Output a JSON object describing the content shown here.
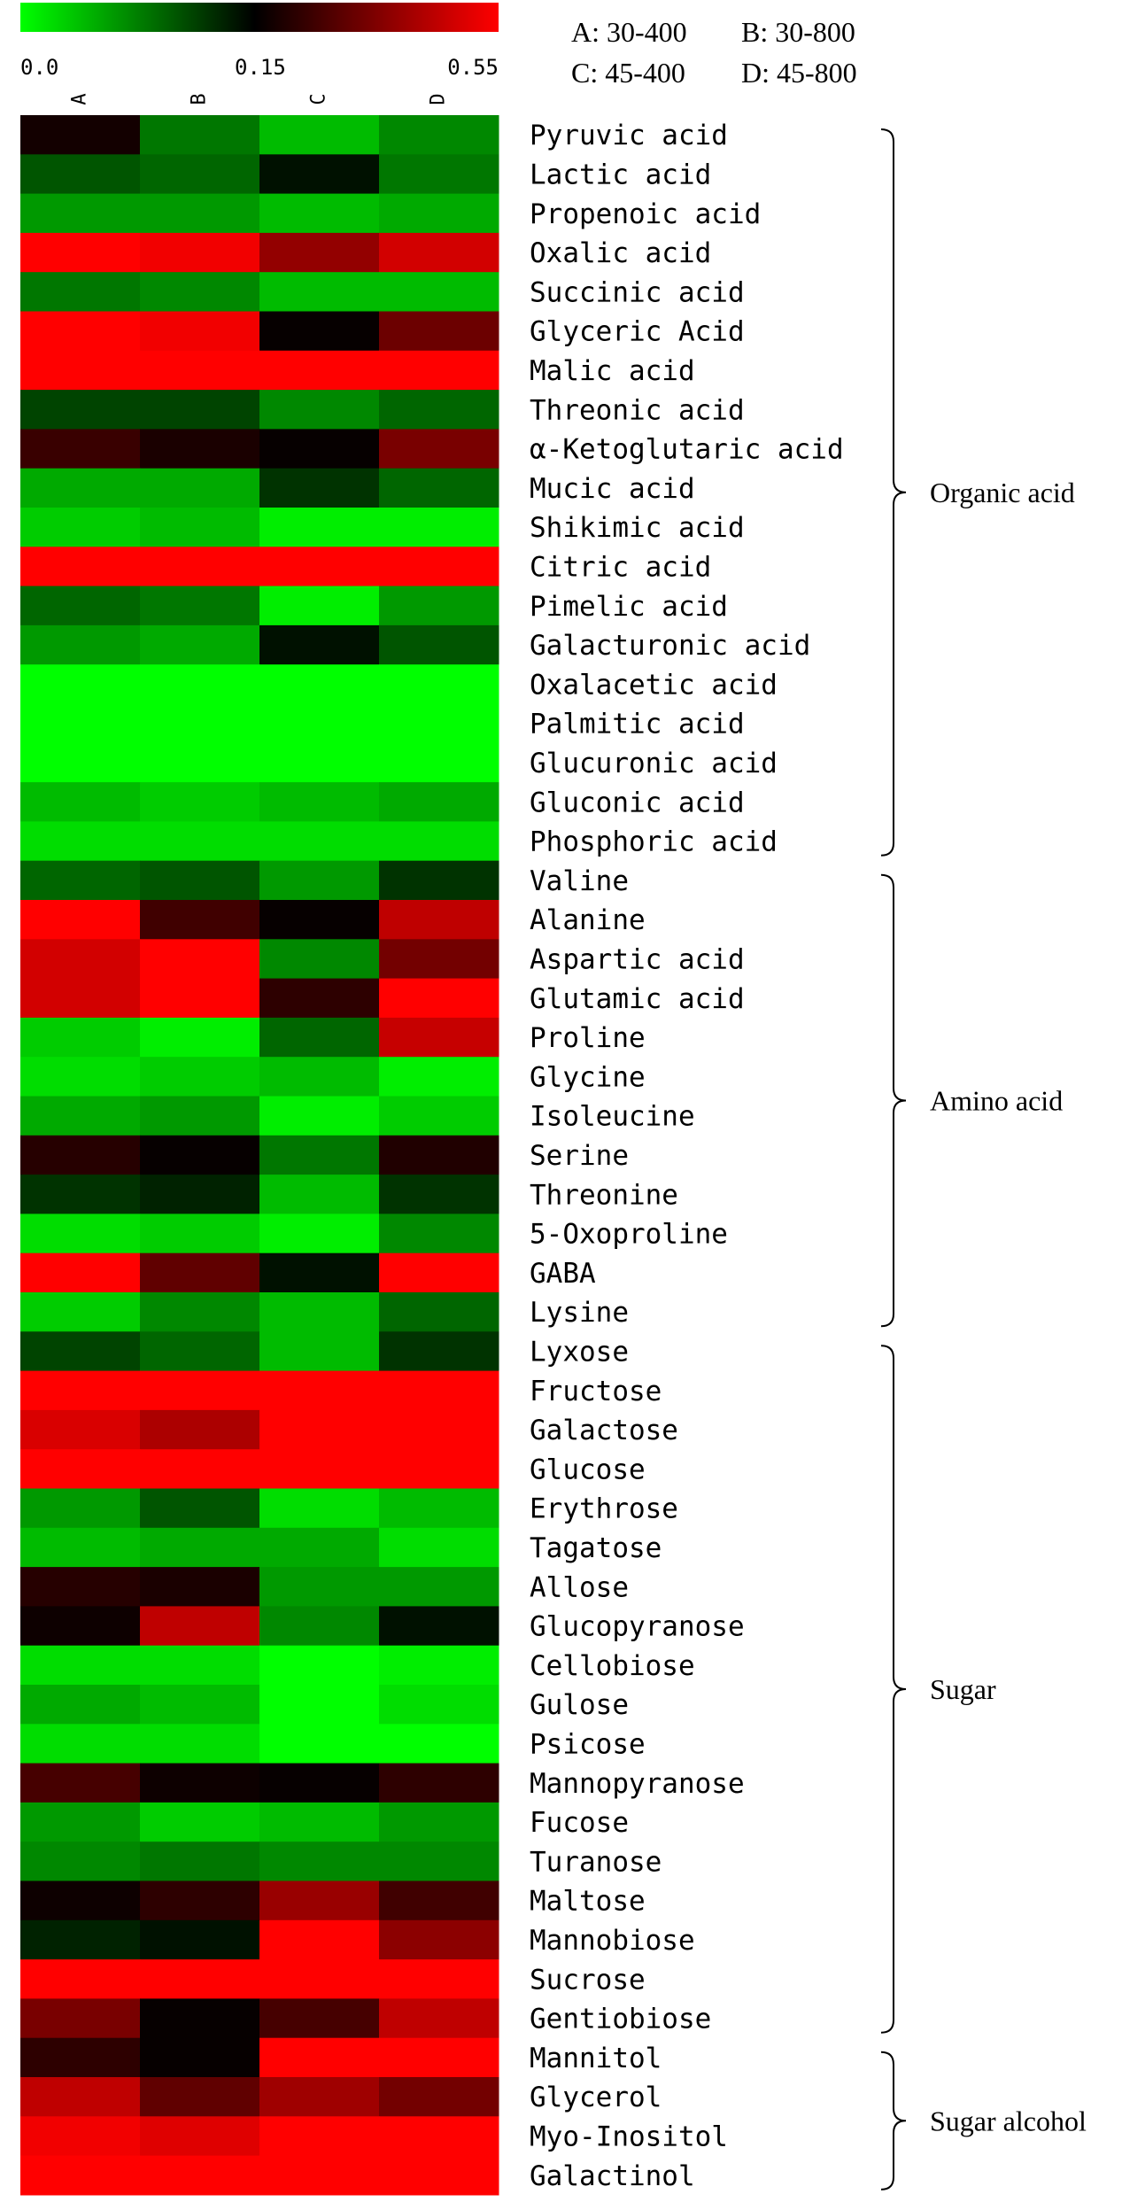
{
  "legend": {
    "ticks": [
      "0.0",
      "0.15",
      "0.55"
    ],
    "tick_values": [
      0.0,
      0.15,
      0.55
    ],
    "colors": [
      "#00ff00",
      "#000000",
      "#ff0000"
    ],
    "treatments": [
      {
        "key": "A",
        "text": "A: 30-400"
      },
      {
        "key": "B",
        "text": "B: 30-800"
      },
      {
        "key": "C",
        "text": "C: 45-400"
      },
      {
        "key": "D",
        "text": "D: 45-800"
      }
    ]
  },
  "chart_data": {
    "type": "heatmap",
    "columns": [
      "A",
      "B",
      "C",
      "D"
    ],
    "rows": [
      "Pyruvic acid",
      "Lactic acid",
      "Propenoic acid",
      "Oxalic acid",
      "Succinic acid",
      "Glyceric Acid",
      "Malic acid",
      "Threonic acid",
      "α-Ketoglutaric acid",
      "Mucic acid",
      "Shikimic acid",
      "Citric acid",
      "Pimelic acid",
      "Galacturonic acid",
      "Oxalacetic acid",
      "Palmitic acid",
      "Glucuronic acid",
      "Gluconic acid",
      "Phosphoric acid",
      "Valine",
      "Alanine",
      "Aspartic acid",
      "Glutamic acid",
      "Proline",
      "Glycine",
      "Isoleucine",
      "Serine",
      "Threonine",
      "5-Oxoproline",
      "GABA",
      "Lysine",
      "Lyxose",
      "Fructose",
      "Galactose",
      "Glucose",
      "Erythrose",
      "Tagatose",
      "Allose",
      "Glucopyranose",
      "Cellobiose",
      "Gulose",
      "Psicose",
      "Mannopyranose",
      "Fucose",
      "Turanose",
      "Maltose",
      "Mannobiose",
      "Sucrose",
      "Gentiobiose",
      "Mannitol",
      "Glycerol",
      "Myo-Inositol",
      "Galactinol"
    ],
    "values": [
      [
        0.18,
        0.08,
        0.04,
        0.07
      ],
      [
        0.1,
        0.09,
        0.14,
        0.08
      ],
      [
        0.06,
        0.06,
        0.04,
        0.05
      ],
      [
        0.55,
        0.53,
        0.38,
        0.48
      ],
      [
        0.08,
        0.07,
        0.04,
        0.04
      ],
      [
        0.55,
        0.53,
        0.16,
        0.32
      ],
      [
        0.55,
        0.55,
        0.55,
        0.55
      ],
      [
        0.11,
        0.11,
        0.07,
        0.09
      ],
      [
        0.24,
        0.19,
        0.16,
        0.34
      ],
      [
        0.05,
        0.05,
        0.12,
        0.09
      ],
      [
        0.03,
        0.04,
        0.01,
        0.01
      ],
      [
        0.55,
        0.55,
        0.55,
        0.55
      ],
      [
        0.09,
        0.08,
        0.01,
        0.06
      ],
      [
        0.06,
        0.05,
        0.14,
        0.1
      ],
      [
        0.0,
        0.0,
        0.0,
        0.0
      ],
      [
        0.0,
        0.0,
        0.0,
        0.0
      ],
      [
        0.0,
        0.0,
        0.0,
        0.0
      ],
      [
        0.04,
        0.03,
        0.04,
        0.05
      ],
      [
        0.02,
        0.02,
        0.02,
        0.02
      ],
      [
        0.09,
        0.1,
        0.06,
        0.12
      ],
      [
        0.55,
        0.25,
        0.16,
        0.45
      ],
      [
        0.48,
        0.55,
        0.07,
        0.33
      ],
      [
        0.48,
        0.55,
        0.22,
        0.55
      ],
      [
        0.03,
        0.01,
        0.09,
        0.46
      ],
      [
        0.02,
        0.03,
        0.04,
        0.01
      ],
      [
        0.05,
        0.06,
        0.01,
        0.03
      ],
      [
        0.21,
        0.16,
        0.08,
        0.2
      ],
      [
        0.12,
        0.13,
        0.04,
        0.12
      ],
      [
        0.02,
        0.03,
        0.01,
        0.07
      ],
      [
        0.55,
        0.3,
        0.14,
        0.55
      ],
      [
        0.03,
        0.07,
        0.04,
        0.09
      ],
      [
        0.11,
        0.09,
        0.04,
        0.12
      ],
      [
        0.55,
        0.55,
        0.55,
        0.55
      ],
      [
        0.49,
        0.42,
        0.55,
        0.55
      ],
      [
        0.55,
        0.55,
        0.55,
        0.55
      ],
      [
        0.06,
        0.1,
        0.02,
        0.04
      ],
      [
        0.04,
        0.05,
        0.05,
        0.02
      ],
      [
        0.21,
        0.19,
        0.06,
        0.06
      ],
      [
        0.17,
        0.45,
        0.07,
        0.14
      ],
      [
        0.02,
        0.02,
        0.0,
        0.01
      ],
      [
        0.05,
        0.04,
        0.0,
        0.02
      ],
      [
        0.02,
        0.02,
        0.0,
        0.0
      ],
      [
        0.26,
        0.17,
        0.16,
        0.22
      ],
      [
        0.06,
        0.03,
        0.04,
        0.06
      ],
      [
        0.07,
        0.08,
        0.07,
        0.07
      ],
      [
        0.17,
        0.22,
        0.39,
        0.25
      ],
      [
        0.13,
        0.14,
        0.55,
        0.37
      ],
      [
        0.55,
        0.55,
        0.55,
        0.55
      ],
      [
        0.34,
        0.16,
        0.26,
        0.45
      ],
      [
        0.22,
        0.16,
        0.55,
        0.55
      ],
      [
        0.45,
        0.3,
        0.4,
        0.33
      ],
      [
        0.53,
        0.5,
        0.55,
        0.55
      ],
      [
        0.55,
        0.55,
        0.55,
        0.55
      ]
    ],
    "groups": [
      {
        "label": "Organic acid",
        "from": 0,
        "to": 18
      },
      {
        "label": "Amino acid",
        "from": 19,
        "to": 30
      },
      {
        "label": "Sugar",
        "from": 31,
        "to": 48
      },
      {
        "label": "Sugar alcohol",
        "from": 49,
        "to": 52
      }
    ]
  }
}
